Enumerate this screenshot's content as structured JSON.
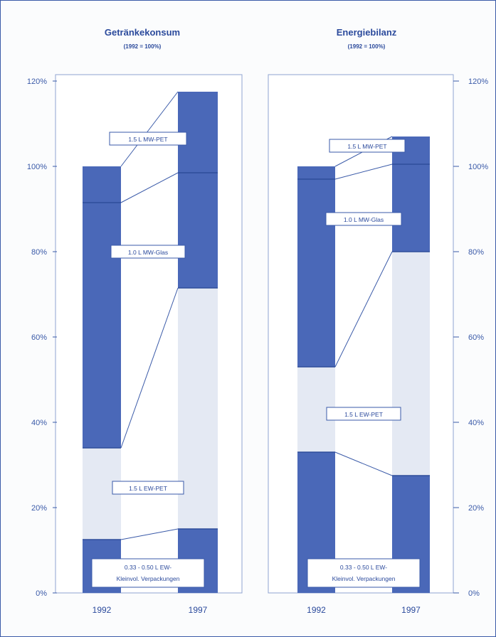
{
  "chart_data": [
    {
      "type": "bar",
      "stacked": true,
      "title": "Getränkekonsum",
      "subtitle": "(1992 = 100%)",
      "categories": [
        "1992",
        "1997"
      ],
      "series": [
        {
          "name": "0.33 - 0.50 L EW-Kleinvol. Verpackungen",
          "values": [
            12.5,
            15
          ]
        },
        {
          "name": "1.5 L EW-PET",
          "values": [
            21.5,
            56.5
          ]
        },
        {
          "name": "1.0 L MW-Glas",
          "values": [
            57.5,
            27
          ]
        },
        {
          "name": "1.5 L MW-PET",
          "values": [
            8.5,
            19
          ]
        }
      ],
      "ylim": [
        0,
        120
      ],
      "yticks": [
        "0%",
        "20%",
        "40%",
        "60%",
        "80%",
        "100%",
        "120%"
      ],
      "axis_side": "left"
    },
    {
      "type": "bar",
      "stacked": true,
      "title": "Energiebilanz",
      "subtitle": "(1992 = 100%)",
      "categories": [
        "1992",
        "1997"
      ],
      "series": [
        {
          "name": "0.33 - 0.50 L EW-Kleinvol. Verpackungen",
          "values": [
            33,
            27.5
          ]
        },
        {
          "name": "1.5 L EW-PET",
          "values": [
            20,
            52.5
          ]
        },
        {
          "name": "1.0 L MW-Glas",
          "values": [
            44,
            20.5
          ]
        },
        {
          "name": "1.5 L MW-PET",
          "values": [
            3,
            6.5
          ]
        }
      ],
      "ylim": [
        0,
        120
      ],
      "yticks": [
        "0%",
        "20%",
        "40%",
        "60%",
        "80%",
        "100%",
        "120%"
      ],
      "axis_side": "right"
    }
  ],
  "colors": {
    "frame": "#3a5aa8",
    "dark_segment": "#4a68b8",
    "light_segment": "#e4e9f3",
    "divider": "#2e4d9a",
    "label_box_border": "#3a5aa8",
    "text": "#2b4a9c"
  },
  "labels": {
    "left": [
      {
        "series": "1.5 L MW-PET",
        "text": "1.5 L MW-PET"
      },
      {
        "series": "1.0 L MW-Glas",
        "text": "1.0 L MW-Glas"
      },
      {
        "series": "1.5 L EW-PET",
        "text": "1.5 L EW-PET"
      },
      {
        "series": "0.33 - 0.50 L EW-Kleinvol. Verpackungen",
        "text": "0.33 - 0.50 L EW-",
        "text2": "Kleinvol. Verpackungen"
      }
    ],
    "right": [
      {
        "series": "1.5 L MW-PET",
        "text": "1.5 L MW-PET"
      },
      {
        "series": "1.0 L MW-Glas",
        "text": "1.0 L MW-Glas"
      },
      {
        "series": "1.5 L EW-PET",
        "text": "1.5 L EW-PET"
      },
      {
        "series": "0.33 - 0.50 L EW-Kleinvol. Verpackungen",
        "text": "0.33 - 0.50 L EW-",
        "text2": "Kleinvol. Verpackungen"
      }
    ]
  }
}
